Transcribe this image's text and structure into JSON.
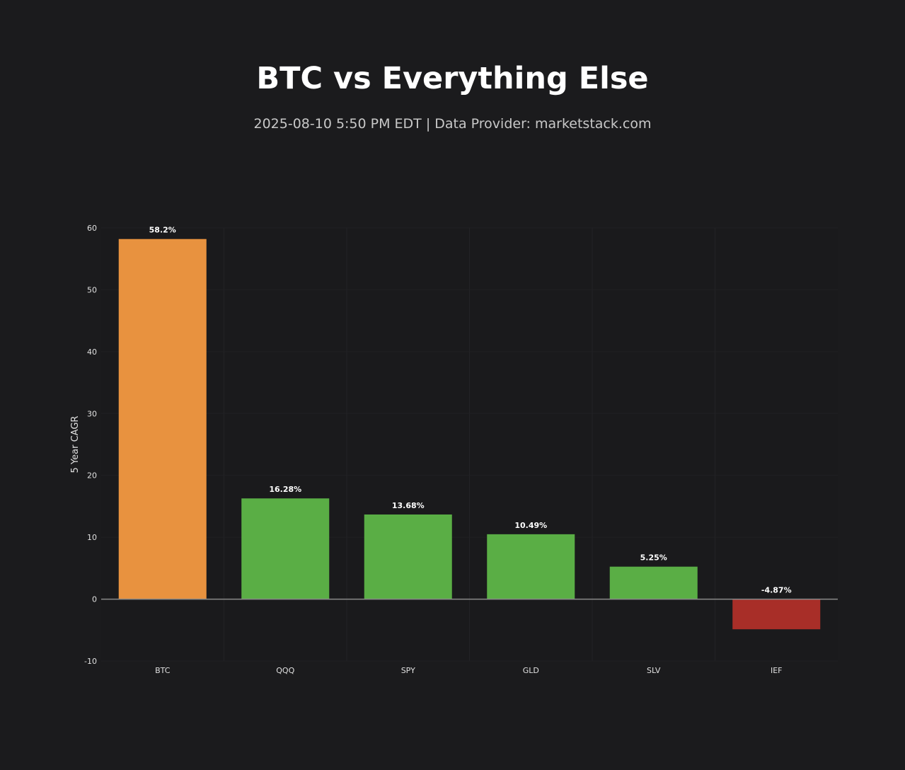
{
  "title": "BTC vs Everything Else",
  "subtitle": "2025-08-10 5:50 PM EDT  |  Data Provider: marketstack.com",
  "chart_data": {
    "type": "bar",
    "title": "BTC vs Everything Else",
    "xlabel": "",
    "ylabel": "5 Year CAGR",
    "categories": [
      "BTC",
      "QQQ",
      "SPY",
      "GLD",
      "SLV",
      "IEF"
    ],
    "values": [
      58.2,
      16.28,
      13.68,
      10.49,
      5.25,
      -4.87
    ],
    "data_labels": [
      "58.2%",
      "16.28%",
      "13.68%",
      "10.49%",
      "5.25%",
      "-4.87%"
    ],
    "colors": [
      "#e8923f",
      "#5aae45",
      "#5aae45",
      "#5aae45",
      "#5aae45",
      "#a82e28"
    ],
    "ylim": [
      -10,
      60
    ],
    "yticks": [
      -10,
      0,
      10,
      20,
      30,
      40,
      50,
      60
    ],
    "grid": true,
    "legend": "none"
  }
}
